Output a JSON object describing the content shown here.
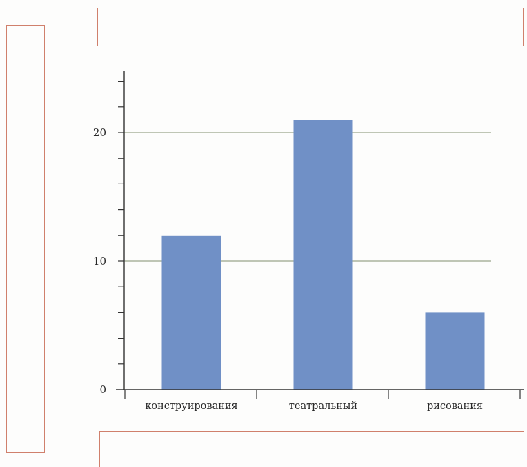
{
  "chart_data": {
    "type": "bar",
    "title": "",
    "xlabel": "",
    "ylabel": "",
    "categories": [
      "конструирования",
      "театральный",
      "рисования"
    ],
    "values": [
      12,
      21,
      6
    ],
    "ylim": [
      0,
      24
    ],
    "y_ticks_labeled": [
      0,
      10,
      20
    ],
    "y_minor_step": 2,
    "grid_lines_at": [
      10,
      20
    ],
    "grid": true,
    "bar_color": "#7090c6",
    "grid_color": "#9aa58a",
    "axis_color": "#333333"
  },
  "answer_boxes": {
    "top": "",
    "left": "",
    "bottom": ""
  }
}
